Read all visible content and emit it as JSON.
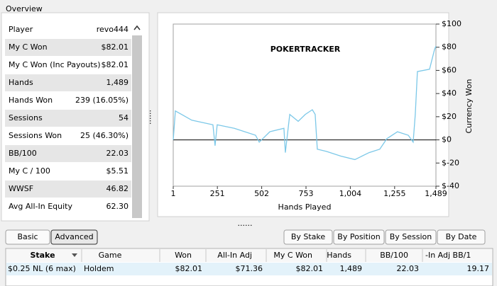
{
  "overview": {
    "title": "Overview",
    "rows": [
      {
        "label": "Player",
        "value": "revo444"
      },
      {
        "label": "My C Won",
        "value": "$82.01",
        "color": "#2c9a2c"
      },
      {
        "label": "My C Won (Inc Payouts)",
        "value": "$82.01",
        "color": "#2c9a2c"
      },
      {
        "label": "Hands",
        "value": "1,489"
      },
      {
        "label": "Hands Won",
        "value": "239 (16.05%)"
      },
      {
        "label": "Sessions",
        "value": "54"
      },
      {
        "label": "Sessions Won",
        "value": "25 (46.30%)"
      },
      {
        "label": "BB/100",
        "value": "22.03",
        "color": "#2c9a2c"
      },
      {
        "label": "My C / 100",
        "value": "$5.51",
        "color": "#2c9a2c"
      },
      {
        "label": "WWSF",
        "value": "46.82"
      },
      {
        "label": "Avg All-In Equity",
        "value": "62.30"
      }
    ]
  },
  "chart_data": {
    "type": "line",
    "watermark": "POKERTRACKER",
    "xlabel": "Hands Played",
    "ylabel": "Currency Won",
    "xlim": [
      1,
      1489
    ],
    "ylim": [
      -40,
      100
    ],
    "xticks": [
      1,
      251,
      502,
      753,
      {
        "value": 1004,
        "label": "1,004"
      },
      {
        "value": 1255,
        "label": "1,255"
      },
      {
        "value": 1489,
        "label": "1,489"
      }
    ],
    "yticks": [
      {
        "value": 100,
        "label": "$100"
      },
      {
        "value": 80,
        "label": "$80"
      },
      {
        "value": 60,
        "label": "$60"
      },
      {
        "value": 40,
        "label": "$40"
      },
      {
        "value": 20,
        "label": "$20"
      },
      {
        "value": 0,
        "label": "$0"
      },
      {
        "value": -20,
        "label": "$-20"
      },
      {
        "value": -40,
        "label": "$-40"
      }
    ],
    "zero_line": true,
    "series": [
      {
        "color": "#7cc8e8",
        "x": [
          1,
          13,
          106,
          226,
          238,
          250,
          347,
          467,
          488,
          548,
          628,
          636,
          661,
          709,
          749,
          789,
          805,
          817,
          869,
          950,
          1030,
          1110,
          1171,
          1211,
          1271,
          1332,
          1360,
          1372,
          1384,
          1453,
          1481,
          1489
        ],
        "values": [
          0,
          25,
          17,
          13,
          -5,
          13,
          10,
          4,
          -2,
          7,
          10,
          -11,
          22,
          16,
          22,
          26,
          22,
          -8,
          -10,
          -14,
          -17,
          -11,
          -8,
          1,
          7,
          4,
          -2,
          22,
          59,
          61,
          78,
          81
        ]
      }
    ]
  },
  "view_buttons": [
    "Basic",
    "Advanced"
  ],
  "group_buttons": [
    "By Stake",
    "By Position",
    "By Session",
    "By Date"
  ],
  "table": {
    "headers": [
      "Stake",
      "Game",
      "Won",
      "All-In Adj",
      "My C Won",
      "Hands",
      "BB/100",
      "-In Adj BB/1"
    ],
    "rows": [
      [
        {
          "text": "$0.25 NL (6 max)"
        },
        {
          "text": "Holdem"
        },
        {
          "text": "$82.01",
          "color": "#2c9a2c"
        },
        {
          "text": "$71.36",
          "color": "#2c9a2c"
        },
        {
          "text": "$82.01",
          "color": "#2c9a2c"
        },
        {
          "text": "1,489"
        },
        {
          "text": "22.03",
          "color": "#2c9a2c"
        },
        {
          "text": "19.17",
          "color": "#2c9a2c"
        }
      ]
    ]
  }
}
